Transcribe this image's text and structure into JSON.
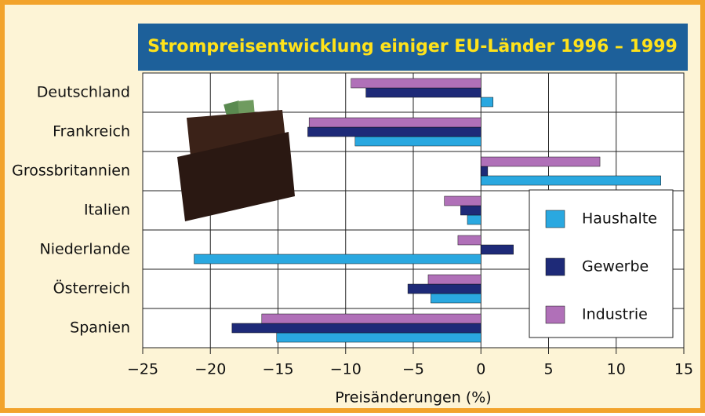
{
  "chart_data": {
    "type": "bar",
    "orientation": "horizontal",
    "title": "Strompreisentwicklung einiger EU-Länder 1996 – 1999",
    "x_label": "Preisänderungen (%)",
    "categories": [
      "Deutschland",
      "Frankreich",
      "Grossbritannien",
      "Italien",
      "Niederlande",
      "Österreich",
      "Spanien"
    ],
    "series": [
      {
        "name": "Haushalte",
        "color": "#2aa8e0",
        "values": [
          0.9,
          -9.3,
          13.3,
          -1.0,
          -21.2,
          -3.7,
          -15.1
        ]
      },
      {
        "name": "Gewerbe",
        "color": "#1e2a78",
        "values": [
          -8.5,
          -12.8,
          0.5,
          -1.5,
          2.4,
          -5.4,
          -18.4
        ]
      },
      {
        "name": "Industrie",
        "color": "#b070b8",
        "values": [
          -9.6,
          -12.7,
          8.8,
          -2.7,
          -1.7,
          -3.9,
          -16.2
        ]
      }
    ],
    "xlim": [
      -25,
      15
    ],
    "xticks": [
      {
        "value": -25,
        "label": "−25"
      },
      {
        "value": -20,
        "label": "−20"
      },
      {
        "value": -15,
        "label": "−15"
      },
      {
        "value": -10,
        "label": "−10"
      },
      {
        "value": -5,
        "label": "−5"
      },
      0,
      5,
      10,
      15
    ],
    "grid": true,
    "legend": "lower right"
  }
}
